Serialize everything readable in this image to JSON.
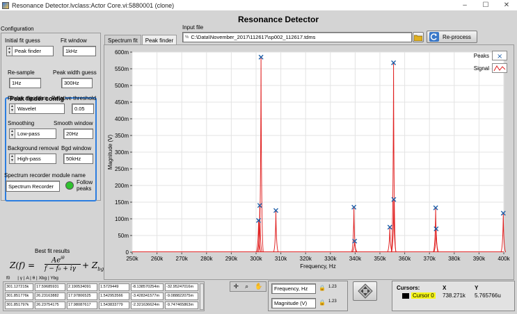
{
  "window": {
    "title": "Resonance Detector.lvclass:Actor Core.vi:5880001 (clone)",
    "minimize": "–",
    "maximize": "☐",
    "close": "✕"
  },
  "header": {
    "title": "Resonance Detector"
  },
  "input_file": {
    "label": "Input file",
    "path": "C:\\Data\\November_2017\\112617\\sp002_112617.tdms",
    "path_prefix": "%",
    "reprocess_label": "Re-process"
  },
  "config": {
    "title": "Configuration",
    "initial_fit_guess_label": "Initial fit guess",
    "initial_fit_guess_value": "Peak finder",
    "fit_window_label": "Fit window",
    "fit_window_value": "1kHz",
    "peak_finder": {
      "title": "Peak finder config",
      "resample_label": "Re-sample",
      "resample_value": "1Hz",
      "peak_width_label": "Peak width guess",
      "peak_width_value": "300Hz",
      "finder_algorithm_label": "Finder algorithm",
      "finder_algorithm_value": "Wavelet",
      "relative_threshold_label": "Relative threshold",
      "relative_threshold_value": "0.05",
      "smoothing_label": "Smoothing",
      "smoothing_value": "Low-pass",
      "smooth_window_label": "Smooth window",
      "smooth_window_value": "20Hz",
      "background_removal_label": "Background removal",
      "background_removal_value": "High-pass",
      "bgd_window_label": "Bgd window",
      "bgd_window_value": "50kHz"
    },
    "spectrum_recorder_label": "Spectrum recorder module name",
    "spectrum_recorder_value": "Spectrum Recorder",
    "follow_peaks_label": "Follow peaks",
    "follow_peaks_led_color": "#2fc22f"
  },
  "tabs": [
    {
      "label": "Spectrum fit",
      "active": false
    },
    {
      "label": "Peak finder",
      "active": true
    }
  ],
  "legend": {
    "peaks_label": "Peaks",
    "signal_label": "Signal"
  },
  "colors": {
    "signal": "#e02020",
    "peaks": "#1f5fa8",
    "accent": "#2b7de0"
  },
  "chart_data": {
    "type": "line",
    "xlabel": "Frequency, Hz",
    "ylabel": "Magnitude (V)",
    "xlim": [
      250000,
      400000
    ],
    "ylim": [
      0,
      600
    ],
    "x_ticks": [
      "250k",
      "260k",
      "270k",
      "280k",
      "290k",
      "300k",
      "310k",
      "320k",
      "330k",
      "340k",
      "350k",
      "360k",
      "370k",
      "380k",
      "390k",
      "400k"
    ],
    "y_ticks": [
      "0",
      "50m",
      "100m",
      "150m",
      "200m",
      "250m",
      "300m",
      "350m",
      "400m",
      "450m",
      "500m",
      "550m",
      "600m"
    ],
    "grid": true,
    "signal_peaks": [
      {
        "x": 301000,
        "y": 95
      },
      {
        "x": 301500,
        "y": 140
      },
      {
        "x": 302000,
        "y": 585
      },
      {
        "x": 308000,
        "y": 125
      },
      {
        "x": 339500,
        "y": 135
      },
      {
        "x": 339800,
        "y": 33
      },
      {
        "x": 354000,
        "y": 75
      },
      {
        "x": 355500,
        "y": 568
      },
      {
        "x": 355600,
        "y": 158
      },
      {
        "x": 372500,
        "y": 133
      },
      {
        "x": 372700,
        "y": 70
      },
      {
        "x": 399800,
        "y": 117
      }
    ],
    "series": [
      {
        "name": "Peaks"
      },
      {
        "name": "Signal"
      }
    ]
  },
  "fit": {
    "title": "Best fit results",
    "formula_main": "Z(f) =",
    "formula_num": "Ae",
    "formula_num_exp": "iθ",
    "formula_den": "f − f₀ + iγ",
    "formula_tail": "+ Z",
    "formula_tail_sub": "bg",
    "columns": [
      "f0",
      "γ",
      "A",
      "θ",
      "Xbg",
      "Ybg"
    ],
    "rows": [
      [
        "301.127215k",
        "17.59685931",
        "2.190534091",
        "1.5729449",
        "-8.138570254m",
        "-32.95247016m"
      ],
      [
        "301.851776k",
        "26.23163882",
        "17.97806525",
        "1.542953566",
        "-3.428341577m",
        "-9.088822075m"
      ],
      [
        "301.851797k",
        "26.23754175",
        "17.98087617",
        "1.543833779",
        "-2.321636624m",
        "-9.747465863m"
      ]
    ]
  },
  "scales": {
    "x_name": "Frequency, Hz",
    "y_name": "Magnitude (V)",
    "x_fmt": "1.23",
    "y_fmt": "1.23"
  },
  "cursors": {
    "title": "Cursors:",
    "x_header": "X",
    "y_header": "Y",
    "name": "Cursor 0",
    "x": "738.271k",
    "y": "5.765766u"
  }
}
